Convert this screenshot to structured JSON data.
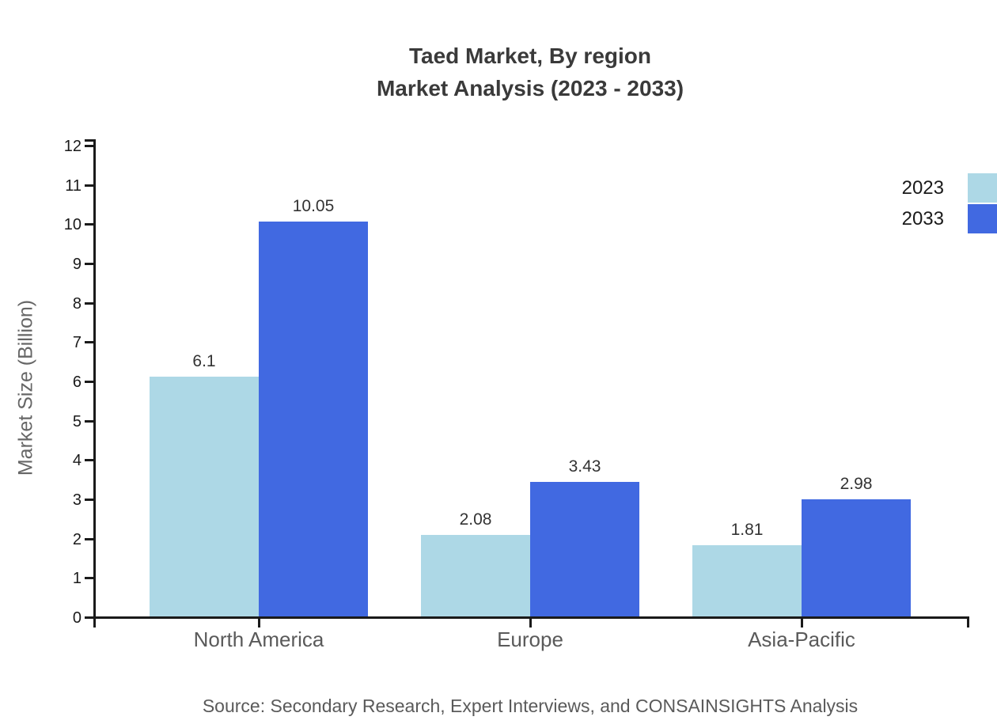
{
  "title": {
    "line1": "Taed Market, By region",
    "line2": "Market Analysis (2023 - 2033)"
  },
  "source": "Source: Secondary Research, Expert Interviews, and CONSAINSIGHTS Analysis",
  "chart_data": {
    "type": "bar",
    "title": "Taed Market, By region Market Analysis (2023 - 2033)",
    "categories": [
      "North America",
      "Europe",
      "Asia-Pacific"
    ],
    "series": [
      {
        "name": "2023",
        "color": "#ADD8E6",
        "values": [
          6.1,
          2.08,
          1.81
        ]
      },
      {
        "name": "2033",
        "color": "#4169E1",
        "values": [
          10.05,
          3.43,
          2.98
        ]
      }
    ],
    "xlabel": "",
    "ylabel": "Market Size (Billion)",
    "ylim": [
      0,
      12
    ],
    "ytick_step": 1,
    "grid": false,
    "legend_position": "upper right outside",
    "value_labels_shown": true
  },
  "colors": {
    "series_2023": "#ADD8E6",
    "series_2033": "#4169E1",
    "axis": "#1a1a1a",
    "title_text": "#3a3a3a",
    "category_label": "#5a5a5a",
    "value_label": "#333333",
    "axis_title": "#666666",
    "source_text": "#5a5a5a"
  }
}
